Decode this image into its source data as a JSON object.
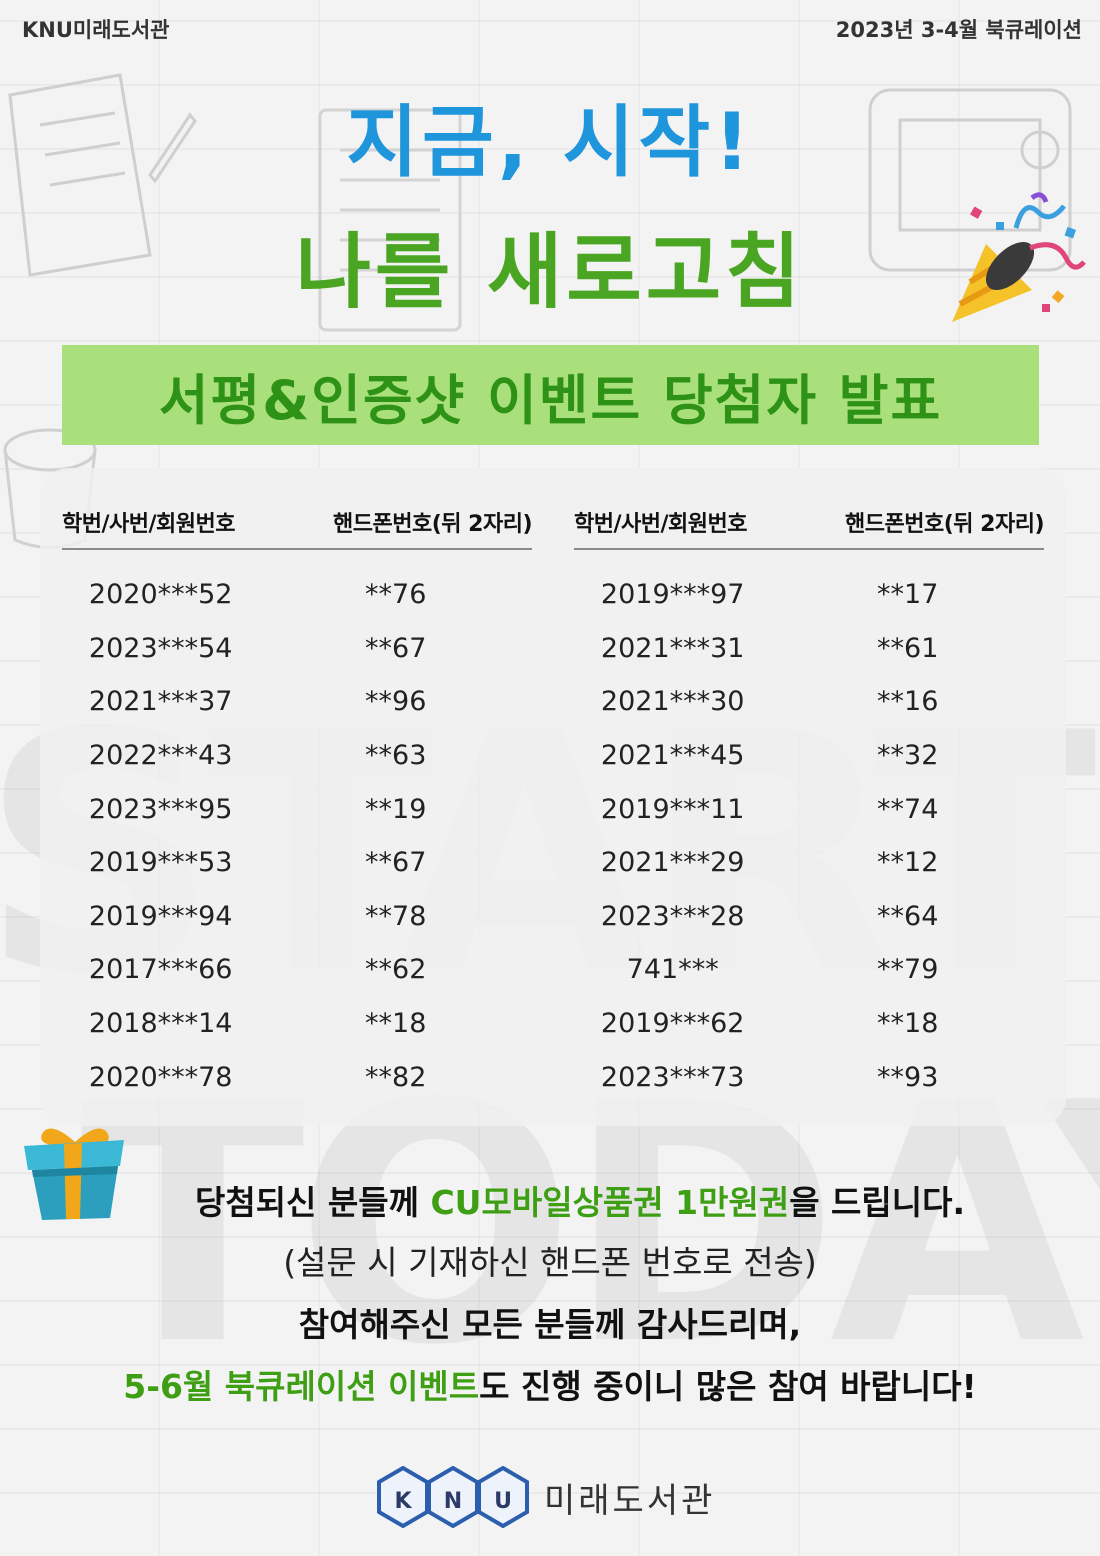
{
  "header": {
    "left": "KNU미래도서관",
    "right": "2023년 3-4월 북큐레이션"
  },
  "headline": {
    "line1": "지금, 시작!",
    "line2": "나를 새로고침"
  },
  "banner": "서평&인증샷 이벤트 당첨자 발표",
  "background_word": "START TODAY!",
  "table": {
    "col1_header": "학번/사번/회원번호",
    "col2_header": "핸드폰번호(뒤 2자리)",
    "left": [
      [
        "2020***52",
        "**76"
      ],
      [
        "2023***54",
        "**67"
      ],
      [
        "2021***37",
        "**96"
      ],
      [
        "2022***43",
        "**63"
      ],
      [
        "2023***95",
        "**19"
      ],
      [
        "2019***53",
        "**67"
      ],
      [
        "2019***94",
        "**78"
      ],
      [
        "2017***66",
        "**62"
      ],
      [
        "2018***14",
        "**18"
      ],
      [
        "2020***78",
        "**82"
      ]
    ],
    "right": [
      [
        "2019***97",
        "**17"
      ],
      [
        "2021***31",
        "**61"
      ],
      [
        "2021***30",
        "**16"
      ],
      [
        "2021***45",
        "**32"
      ],
      [
        "2019***11",
        "**74"
      ],
      [
        "2021***29",
        "**12"
      ],
      [
        "2023***28",
        "**64"
      ],
      [
        "741***",
        "**79"
      ],
      [
        "2019***62",
        "**18"
      ],
      [
        "2023***73",
        "**93"
      ]
    ]
  },
  "message": {
    "l1_a": "당첨되신 분들께 ",
    "l1_b": "CU모바일상품권 1만원권",
    "l1_c": "을 드립니다.",
    "l2": "(설문 시 기재하신 핸드폰 번호로 전송)",
    "l3": "참여해주신 모든 분들께 감사드리며,",
    "l4_a": "5-6월 북큐레이션 이벤트",
    "l4_b": "도 진행 중이니 많은 참여 바랍니다!"
  },
  "footer": {
    "logo_letters": [
      "K",
      "N",
      "U"
    ],
    "label": "미래도서관"
  },
  "colors": {
    "blue": "#1f95dc",
    "green": "#4aa622",
    "banner_bg": "#a9e07c",
    "banner_text": "#2d9216",
    "accent_green": "#3e9f14"
  },
  "icons": [
    "party-popper-icon",
    "gift-box-icon",
    "knu-hexagon-logo"
  ]
}
